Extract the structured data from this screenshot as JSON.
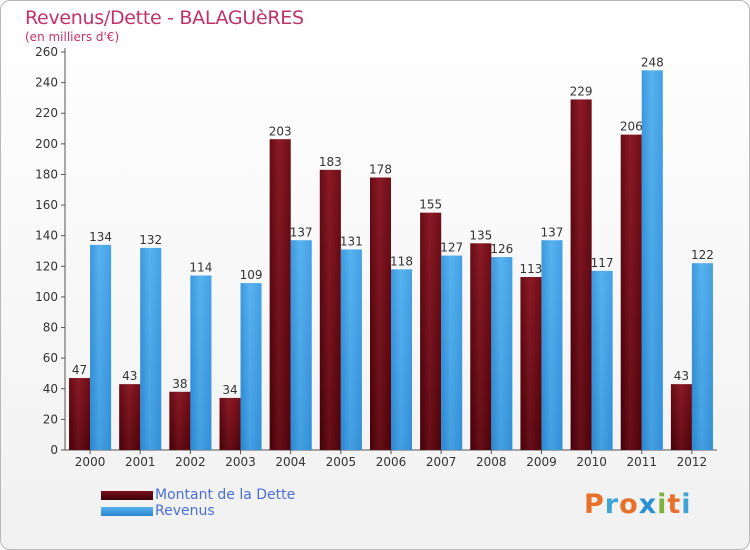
{
  "title": "Revenus/Dette - BALAGUèRES",
  "subtitle": "(en milliers d'€)",
  "brand": {
    "text": "Proxiti",
    "letter_colors": [
      "#e8702a",
      "#3fa3d6",
      "#e8702a",
      "#2b8fd4",
      "#7db33c",
      "#e8702a",
      "#3fa3d6"
    ]
  },
  "chart_data": {
    "type": "bar",
    "title": "Revenus/Dette - BALAGUèRES",
    "ylabel": "(en milliers d'€)",
    "xlabel": "",
    "categories": [
      "2000",
      "2001",
      "2002",
      "2003",
      "2004",
      "2005",
      "2006",
      "2007",
      "2008",
      "2009",
      "2010",
      "2011",
      "2012"
    ],
    "series": [
      {
        "name": "Montant de la Dette",
        "color": "#6e0a14",
        "values": [
          47,
          43,
          38,
          34,
          203,
          183,
          178,
          155,
          135,
          113,
          229,
          206,
          43
        ]
      },
      {
        "name": "Revenus",
        "color": "#3a9ae0",
        "values": [
          134,
          132,
          114,
          109,
          137,
          131,
          118,
          127,
          126,
          137,
          117,
          248,
          122
        ]
      }
    ],
    "ylim": [
      0,
      260
    ],
    "yticks": [
      0,
      20,
      40,
      60,
      80,
      100,
      120,
      140,
      160,
      180,
      200,
      220,
      240,
      260
    ],
    "grid": false,
    "legend": "bottom-left",
    "show_data_labels": true
  }
}
